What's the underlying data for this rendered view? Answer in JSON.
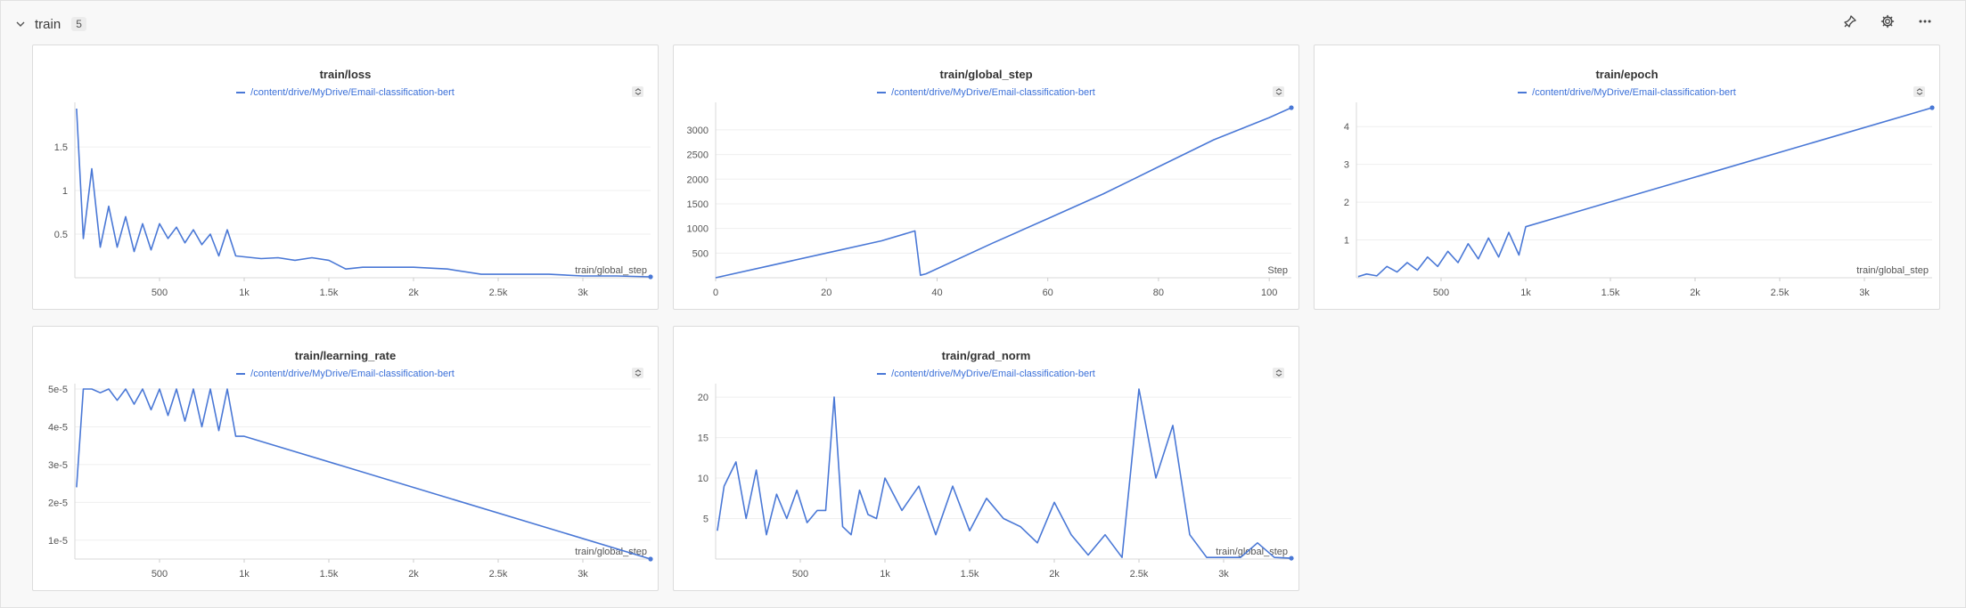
{
  "section": {
    "title": "train",
    "count": "5",
    "icons": {
      "collapse": "chevron-down-icon",
      "pin": "pin-icon",
      "settings": "gear-icon",
      "more": "more-icon"
    }
  },
  "colors": {
    "accent": "#4a78d6",
    "legend_text": "#3a6fd8"
  },
  "panels": [
    {
      "title": "train/loss",
      "legend": "/content/drive/MyDrive/Email-classification-bert"
    },
    {
      "title": "train/global_step",
      "legend": "/content/drive/MyDrive/Email-classification-bert"
    },
    {
      "title": "train/epoch",
      "legend": "/content/drive/MyDrive/Email-classification-bert"
    },
    {
      "title": "train/learning_rate",
      "legend": "/content/drive/MyDrive/Email-classification-bert"
    },
    {
      "title": "train/grad_norm",
      "legend": "/content/drive/MyDrive/Email-classification-bert"
    }
  ],
  "chart_data": [
    {
      "type": "line",
      "title": "train/loss",
      "xlabel": "train/global_step",
      "xlim": [
        0,
        3400
      ],
      "ylim": [
        0,
        1.95
      ],
      "xticks": [
        500,
        1000,
        1500,
        2000,
        2500,
        3000
      ],
      "xtick_labels": [
        "500",
        "1k",
        "1.5k",
        "2k",
        "2.5k",
        "3k"
      ],
      "yticks": [
        0.5,
        1,
        1.5
      ],
      "ytick_labels": [
        "0.5",
        "1",
        "1.5"
      ],
      "grid": true,
      "series": [
        {
          "name": "/content/drive/MyDrive/Email-classification-bert",
          "x": [
            10,
            50,
            100,
            150,
            200,
            250,
            300,
            350,
            400,
            450,
            500,
            550,
            600,
            650,
            700,
            750,
            800,
            850,
            900,
            950,
            1000,
            1100,
            1200,
            1300,
            1400,
            1500,
            1600,
            1700,
            1800,
            2000,
            2200,
            2400,
            2600,
            2800,
            3000,
            3200,
            3400
          ],
          "y": [
            1.94,
            0.45,
            1.25,
            0.35,
            0.82,
            0.35,
            0.7,
            0.3,
            0.62,
            0.32,
            0.62,
            0.45,
            0.58,
            0.4,
            0.55,
            0.38,
            0.5,
            0.25,
            0.55,
            0.25,
            0.24,
            0.22,
            0.23,
            0.2,
            0.23,
            0.2,
            0.1,
            0.12,
            0.12,
            0.12,
            0.1,
            0.04,
            0.04,
            0.04,
            0.02,
            0.02,
            0.01
          ]
        }
      ]
    },
    {
      "type": "line",
      "title": "train/global_step",
      "xlabel": "Step",
      "xlim": [
        0,
        104
      ],
      "ylim": [
        0,
        3450
      ],
      "xticks": [
        0,
        20,
        40,
        60,
        80,
        100
      ],
      "xtick_labels": [
        "0",
        "20",
        "40",
        "60",
        "80",
        "100"
      ],
      "yticks": [
        500,
        1000,
        1500,
        2000,
        2500,
        3000
      ],
      "ytick_labels": [
        "500",
        "1000",
        "1500",
        "2000",
        "2500",
        "3000"
      ],
      "grid": true,
      "series": [
        {
          "name": "/content/drive/MyDrive/Email-classification-bert",
          "x": [
            0,
            10,
            20,
            30,
            36,
            37,
            38,
            50,
            60,
            70,
            80,
            90,
            100,
            104
          ],
          "y": [
            0,
            250,
            500,
            750,
            950,
            50,
            80,
            700,
            1200,
            1700,
            2250,
            2800,
            3250,
            3450
          ]
        }
      ]
    },
    {
      "type": "line",
      "title": "train/epoch",
      "xlabel": "train/global_step",
      "xlim": [
        0,
        3400
      ],
      "ylim": [
        0,
        4.5
      ],
      "xticks": [
        500,
        1000,
        1500,
        2000,
        2500,
        3000
      ],
      "xtick_labels": [
        "500",
        "1k",
        "1.5k",
        "2k",
        "2.5k",
        "3k"
      ],
      "yticks": [
        1,
        2,
        3,
        4
      ],
      "ytick_labels": [
        "1",
        "2",
        "3",
        "4"
      ],
      "grid": true,
      "series": [
        {
          "name": "/content/drive/MyDrive/Email-classification-bert",
          "x": [
            10,
            60,
            120,
            180,
            240,
            300,
            360,
            420,
            480,
            540,
            600,
            660,
            720,
            780,
            840,
            900,
            960,
            1000,
            3400
          ],
          "y": [
            0.03,
            0.1,
            0.05,
            0.3,
            0.15,
            0.4,
            0.2,
            0.55,
            0.3,
            0.7,
            0.4,
            0.9,
            0.5,
            1.05,
            0.55,
            1.2,
            0.6,
            1.35,
            4.5
          ]
        }
      ]
    },
    {
      "type": "line",
      "title": "train/learning_rate",
      "xlabel": "train/global_step",
      "xlim": [
        0,
        3400
      ],
      "ylim": [
        5e-06,
        5e-05
      ],
      "xticks": [
        500,
        1000,
        1500,
        2000,
        2500,
        3000
      ],
      "xtick_labels": [
        "500",
        "1k",
        "1.5k",
        "2k",
        "2.5k",
        "3k"
      ],
      "yticks": [
        1e-05,
        2e-05,
        3e-05,
        4e-05,
        5e-05
      ],
      "ytick_labels": [
        "1e-5",
        "2e-5",
        "3e-5",
        "4e-5",
        "5e-5"
      ],
      "grid": true,
      "series": [
        {
          "name": "/content/drive/MyDrive/Email-classification-bert",
          "x": [
            10,
            50,
            100,
            150,
            200,
            250,
            300,
            350,
            400,
            450,
            500,
            550,
            600,
            650,
            700,
            750,
            800,
            850,
            900,
            950,
            1000,
            3400
          ],
          "y": [
            2.4e-05,
            5e-05,
            5e-05,
            4.9e-05,
            5e-05,
            4.7e-05,
            5e-05,
            4.6e-05,
            5e-05,
            4.45e-05,
            5e-05,
            4.3e-05,
            5e-05,
            4.15e-05,
            5e-05,
            4e-05,
            5e-05,
            3.9e-05,
            5e-05,
            3.75e-05,
            3.75e-05,
            5e-06
          ]
        }
      ]
    },
    {
      "type": "line",
      "title": "train/grad_norm",
      "xlabel": "train/global_step",
      "xlim": [
        0,
        3400
      ],
      "ylim": [
        0,
        21
      ],
      "xticks": [
        500,
        1000,
        1500,
        2000,
        2500,
        3000
      ],
      "xtick_labels": [
        "500",
        "1k",
        "1.5k",
        "2k",
        "2.5k",
        "3k"
      ],
      "yticks": [
        5,
        10,
        15,
        20
      ],
      "ytick_labels": [
        "5",
        "10",
        "15",
        "20"
      ],
      "grid": true,
      "series": [
        {
          "name": "/content/drive/MyDrive/Email-classification-bert",
          "x": [
            10,
            50,
            120,
            180,
            240,
            300,
            360,
            420,
            480,
            540,
            600,
            650,
            700,
            750,
            800,
            850,
            900,
            950,
            1000,
            1100,
            1200,
            1300,
            1400,
            1500,
            1600,
            1700,
            1800,
            1900,
            2000,
            2100,
            2200,
            2300,
            2400,
            2500,
            2600,
            2700,
            2800,
            2900,
            3000,
            3100,
            3200,
            3300,
            3400
          ],
          "y": [
            3.5,
            9,
            12,
            5,
            11,
            3,
            8,
            5,
            8.5,
            4.5,
            6,
            6,
            20,
            4,
            3,
            8.5,
            5.5,
            5,
            10,
            6,
            9,
            3,
            9,
            3.5,
            7.5,
            5,
            4,
            2,
            7,
            3,
            0.5,
            3,
            0.2,
            21,
            10,
            16.5,
            3,
            0.2,
            0.2,
            0.2,
            2,
            0.2,
            0.1
          ]
        }
      ]
    }
  ]
}
